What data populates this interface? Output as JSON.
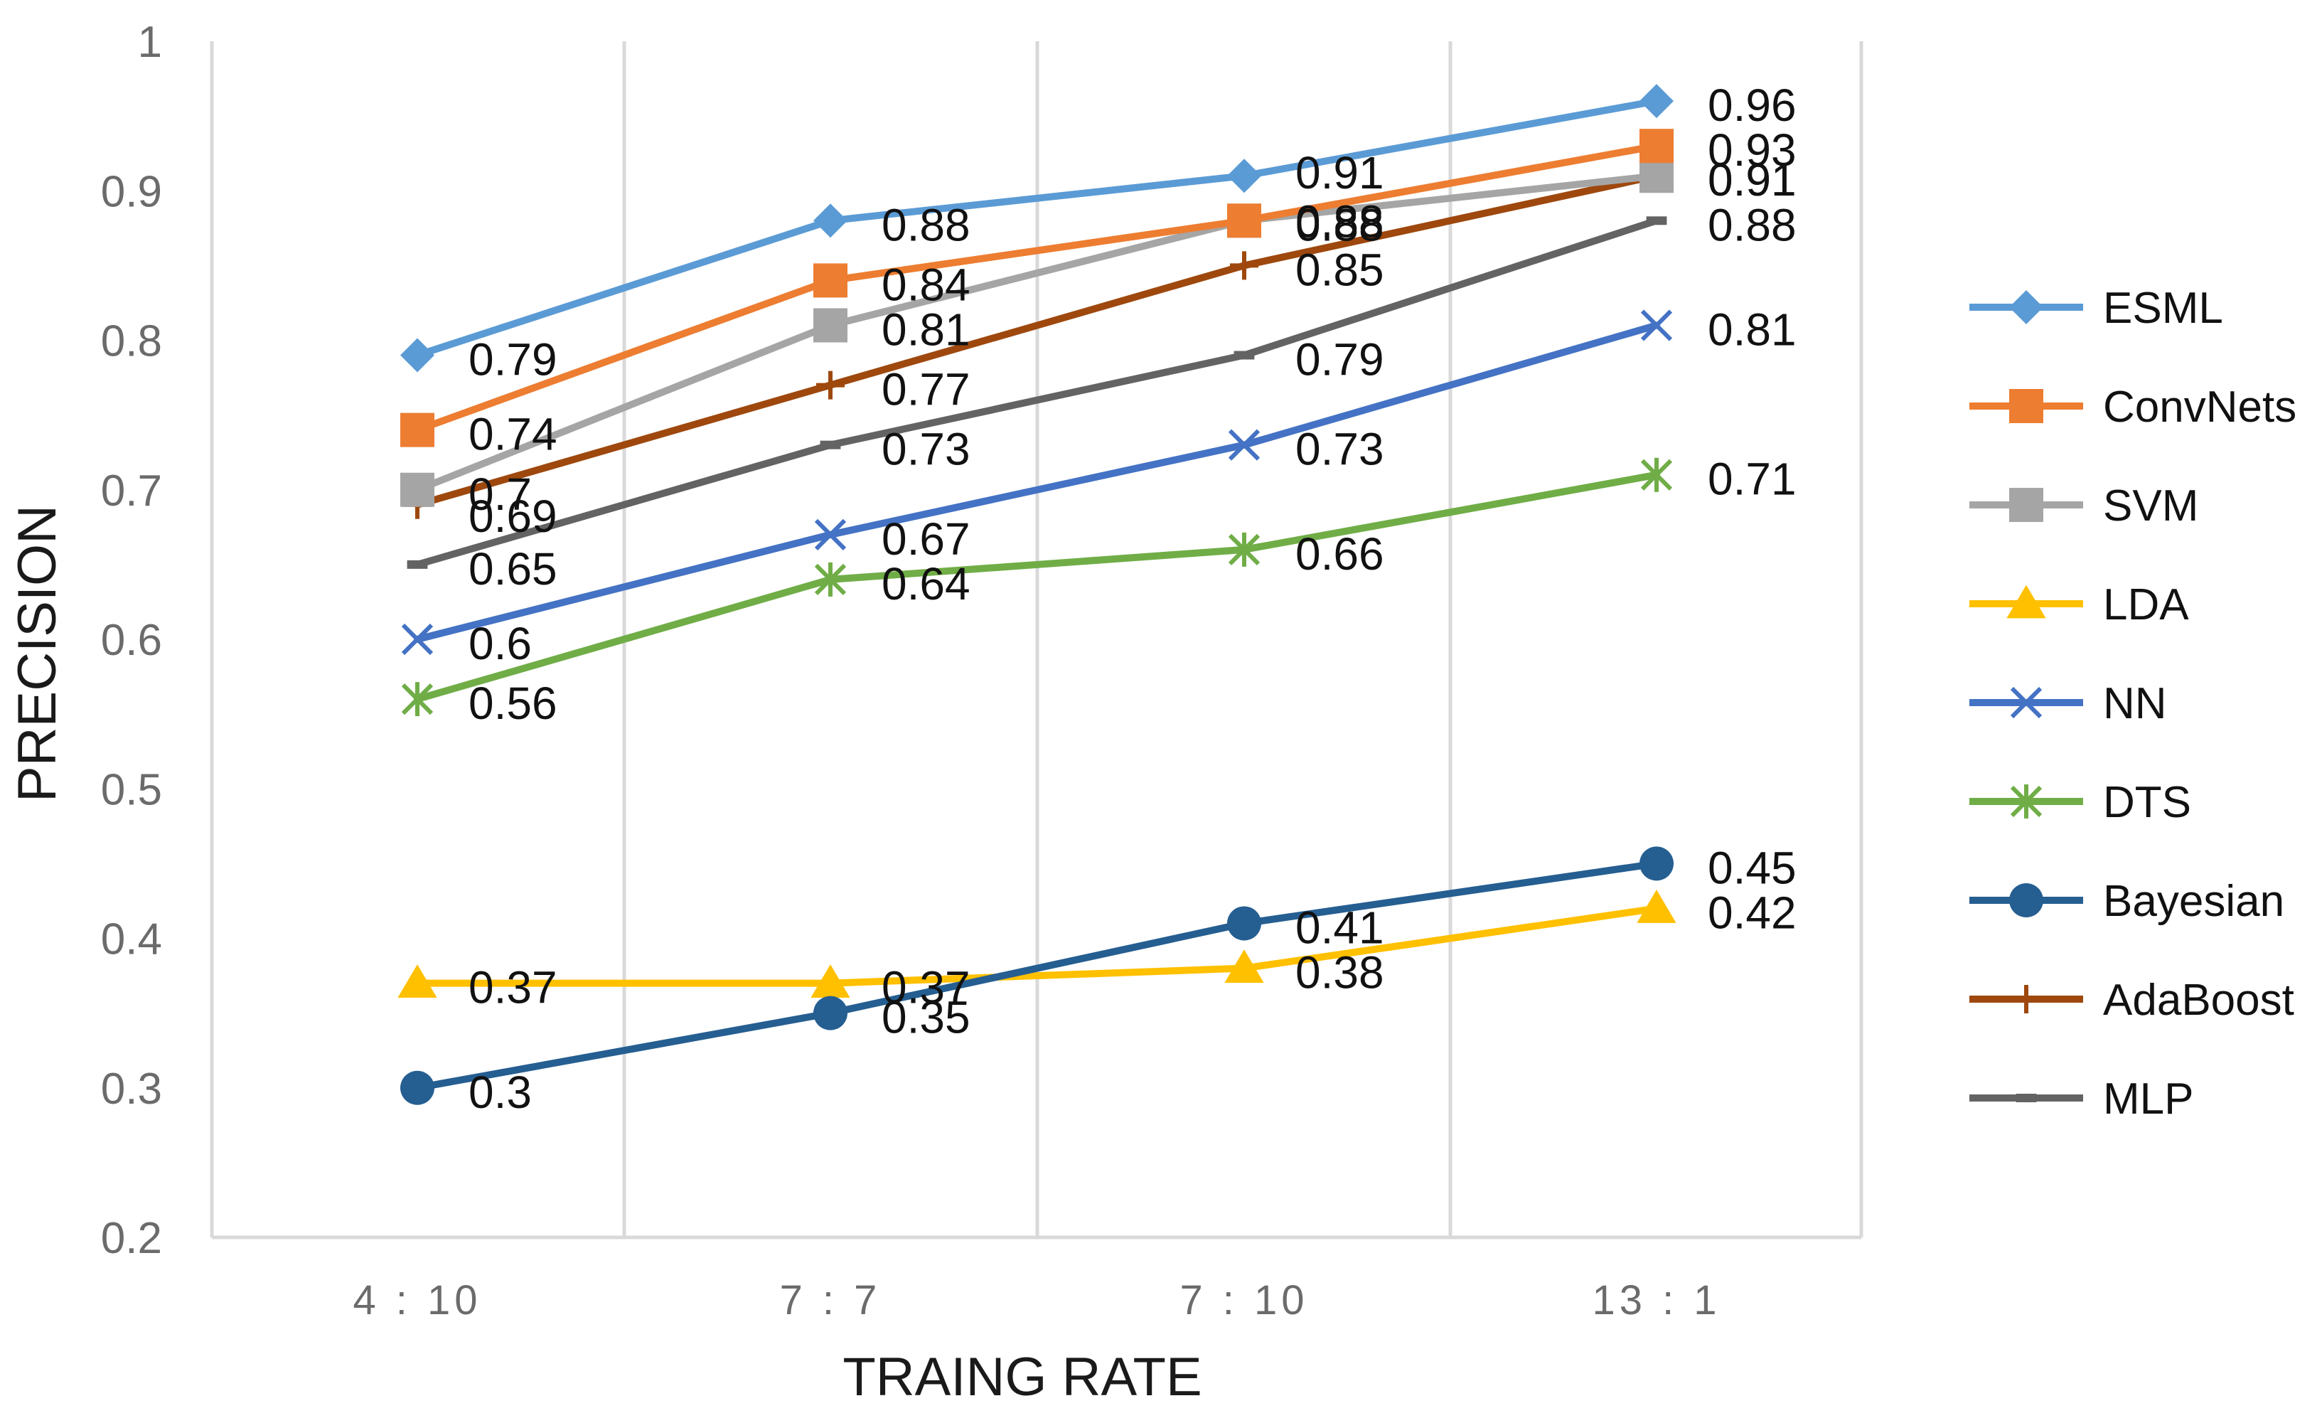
{
  "chart_data": {
    "type": "line",
    "title": "",
    "xlabel": "TRAING RATE",
    "ylabel": "PRECISION",
    "categories": [
      "4 : 10",
      "7 : 7",
      "7 : 10",
      "13 : 1"
    ],
    "ylim": [
      0.2,
      1
    ],
    "yticks": [
      "0.2",
      "0.3",
      "0.4",
      "0.5",
      "0.6",
      "0.7",
      "0.8",
      "0.9",
      "1"
    ],
    "grid": "vertical",
    "legend_position": "right",
    "series": [
      {
        "name": "ESML",
        "color": "#5b9bd5",
        "marker": "diamond",
        "values": [
          0.79,
          0.88,
          0.91,
          0.96
        ],
        "labels": [
          "0.79",
          "0.88",
          "0.91",
          "0.96"
        ]
      },
      {
        "name": "ConvNets",
        "color": "#ed7d31",
        "marker": "square",
        "values": [
          0.74,
          0.84,
          0.88,
          0.93
        ],
        "labels": [
          "0.74",
          "0.84",
          "0.88",
          "0.93"
        ]
      },
      {
        "name": "SVM",
        "color": "#a5a5a5",
        "marker": "square",
        "values": [
          0.7,
          0.81,
          0.88,
          0.91
        ],
        "labels": [
          "0.7",
          "0.81",
          "0.88",
          "0.91"
        ]
      },
      {
        "name": "LDA",
        "color": "#ffc000",
        "marker": "triangle",
        "values": [
          0.37,
          0.37,
          0.38,
          0.42
        ],
        "labels": [
          "0.37",
          "0.37",
          "0.38",
          "0.42"
        ]
      },
      {
        "name": "NN",
        "color": "#4472c4",
        "marker": "x",
        "values": [
          0.6,
          0.67,
          0.73,
          0.81
        ],
        "labels": [
          "0.6",
          "0.67",
          "0.73",
          "0.81"
        ]
      },
      {
        "name": "DTS",
        "color": "#70ad47",
        "marker": "star",
        "values": [
          0.56,
          0.64,
          0.66,
          0.71
        ],
        "labels": [
          "0.56",
          "0.64",
          "0.66",
          "0.71"
        ]
      },
      {
        "name": "Bayesian",
        "color": "#255e91",
        "marker": "circle",
        "values": [
          0.3,
          0.35,
          0.41,
          0.45
        ],
        "labels": [
          "0.3",
          "0.35",
          "0.41",
          "0.45"
        ]
      },
      {
        "name": "AdaBoost",
        "color": "#9e480e",
        "marker": "plus",
        "values": [
          0.69,
          0.77,
          0.85,
          0.91
        ],
        "labels": [
          "0.69",
          "0.77",
          "0.85",
          "0.91"
        ]
      },
      {
        "name": "MLP",
        "color": "#636363",
        "marker": "dash",
        "values": [
          0.65,
          0.73,
          0.79,
          0.88
        ],
        "labels": [
          "0.65",
          "0.73",
          "0.79",
          "0.88"
        ]
      }
    ]
  }
}
